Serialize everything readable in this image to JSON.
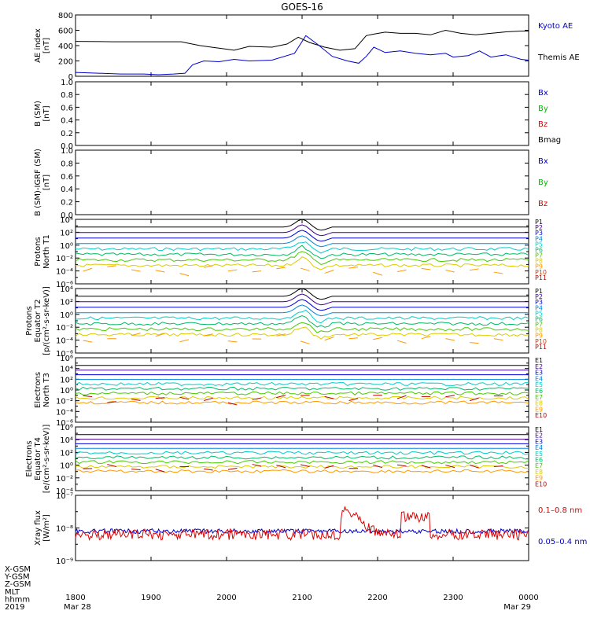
{
  "chart_data": {
    "type": "line",
    "title": "GOES-16",
    "time_axis": {
      "ticks": [
        "1800",
        "1900",
        "2000",
        "2100",
        "2200",
        "2300",
        "0000"
      ],
      "dates": [
        "Mar 28",
        "Mar 29"
      ],
      "range": [
        "2019-03-28 18:00",
        "2019-03-29 00:00"
      ],
      "row_labels": [
        "X-GSM",
        "Y-GSM",
        "Z-GSM",
        "MLT",
        "hhmm",
        "2019"
      ]
    },
    "panels": [
      {
        "id": "ae",
        "ylabel": [
          "AE index",
          "[nT]"
        ],
        "ylim": [
          0,
          800
        ],
        "ticks": [
          "800",
          "600",
          "400",
          "200",
          "0"
        ],
        "legend": [
          {
            "name": "Kyoto AE",
            "color": "#0000cc"
          },
          {
            "name": "Themis AE",
            "color": "#000000"
          }
        ],
        "series": [
          {
            "name": "Themis AE",
            "color": "#000000",
            "x": [
              18.0,
              18.5,
              19.0,
              19.4,
              19.5,
              19.65,
              19.8,
              19.95,
              20.1,
              20.3,
              20.6,
              20.8,
              20.95,
              21.1,
              21.3,
              21.5,
              21.7,
              21.85,
              21.95,
              22.1,
              22.3,
              22.5,
              22.7,
              22.9,
              23.1,
              23.3,
              23.5,
              23.7,
              23.9,
              24.0
            ],
            "y": [
              455,
              450,
              450,
              450,
              430,
              400,
              380,
              360,
              340,
              390,
              380,
              420,
              510,
              440,
              380,
              340,
              360,
              530,
              550,
              575,
              560,
              560,
              540,
              600,
              560,
              540,
              560,
              580,
              590,
              590
            ]
          },
          {
            "name": "Kyoto AE",
            "color": "#0000cc",
            "x": [
              18.0,
              18.3,
              18.6,
              18.9,
              19.1,
              19.3,
              19.45,
              19.55,
              19.7,
              19.9,
              20.1,
              20.3,
              20.6,
              20.9,
              21.05,
              21.2,
              21.4,
              21.6,
              21.75,
              21.85,
              21.95,
              22.1,
              22.3,
              22.5,
              22.7,
              22.9,
              23.0,
              23.2,
              23.35,
              23.5,
              23.7,
              23.9,
              24.0
            ],
            "y": [
              50,
              40,
              30,
              30,
              20,
              30,
              40,
              150,
              200,
              190,
              220,
              200,
              210,
              300,
              530,
              420,
              260,
              200,
              170,
              260,
              380,
              310,
              330,
              300,
              280,
              300,
              250,
              270,
              330,
              250,
              280,
              220,
              210
            ]
          }
        ]
      },
      {
        "id": "bsm",
        "ylabel": [
          "B (SM)",
          "[nT]"
        ],
        "ylim": [
          0.0,
          1.0
        ],
        "ticks": [
          "1.0",
          "0.8",
          "0.6",
          "0.4",
          "0.2",
          "0.0"
        ],
        "legend": [
          {
            "name": "Bx",
            "color": "#0000cc"
          },
          {
            "name": "By",
            "color": "#00bb00"
          },
          {
            "name": "Bz",
            "color": "#dd0000"
          },
          {
            "name": "Bmag",
            "color": "#000000"
          }
        ]
      },
      {
        "id": "bigrf",
        "ylabel": [
          "B (SM)-IGRF (SM)",
          "[nT]"
        ],
        "ylim": [
          0.0,
          1.0
        ],
        "ticks": [
          "1.0",
          "0.8",
          "0.6",
          "0.4",
          "0.2",
          "0.0"
        ],
        "legend": [
          {
            "name": "Bx",
            "color": "#0000cc"
          },
          {
            "name": "By",
            "color": "#00bb00"
          },
          {
            "name": "Bz",
            "color": "#dd0000"
          }
        ]
      },
      {
        "id": "protons_t1",
        "ylabel": [
          "Protons",
          "North T1"
        ],
        "log": true,
        "ticks": [
          "10⁴",
          "10²",
          "10⁰",
          "10⁻²",
          "10⁻⁴",
          "10⁻⁶"
        ],
        "legend_labels": [
          "P1",
          "P2",
          "P3",
          "P4",
          "P5",
          "P6",
          "P7",
          "P8",
          "P9",
          "P10",
          "P11"
        ]
      },
      {
        "id": "protons_t2",
        "ylabel": [
          "Protons",
          "Equator T2",
          "[p/(cm²-s-sr-keV)]"
        ],
        "log": true,
        "ticks": [
          "10⁴",
          "10²",
          "10⁰",
          "10⁻²",
          "10⁻⁴",
          "10⁻⁶"
        ],
        "legend_labels": [
          "P1",
          "P2",
          "P3",
          "P4",
          "P5",
          "P6",
          "P7",
          "P8",
          "P9",
          "P10",
          "P11"
        ]
      },
      {
        "id": "electrons_t3",
        "ylabel": [
          "Electrons",
          "North T3"
        ],
        "log": true,
        "ticks": [
          "10⁶",
          "10⁴",
          "10²",
          "10⁰",
          "10⁻²",
          "10⁻⁴",
          "10⁻⁶"
        ],
        "legend_labels": [
          "E1",
          "E2",
          "E3",
          "E4",
          "E5",
          "E6",
          "E7",
          "E8",
          "E9",
          "E10"
        ]
      },
      {
        "id": "electrons_t4",
        "ylabel": [
          "Electrons",
          "Equator T4",
          "[e/(cm²-s-sr-keV)]"
        ],
        "log": true,
        "ticks": [
          "10⁶",
          "10⁴",
          "10²",
          "10⁰",
          "10⁻²",
          "10⁻⁴"
        ],
        "legend_labels": [
          "E1",
          "E2",
          "E3",
          "E4",
          "E5",
          "E6",
          "E7",
          "E8",
          "E9",
          "E10"
        ]
      },
      {
        "id": "xray",
        "ylabel": [
          "Xray flux",
          "[W/m²]"
        ],
        "log": true,
        "ticks": [
          "10⁻⁷",
          "10⁻⁸",
          "10⁻⁹"
        ],
        "legend": [
          {
            "name": "0.1–0.8 nm",
            "color": "#dd0000"
          },
          {
            "name": "0.05–0.4 nm",
            "color": "#0000cc"
          }
        ]
      }
    ]
  },
  "palette": {
    "P": [
      "#000000",
      "#40008a",
      "#0000dd",
      "#0088dd",
      "#00cccc",
      "#00bb66",
      "#44cc00",
      "#ddcc00",
      "#ff9900",
      "#dd3300",
      "#bb0000"
    ],
    "E": [
      "#000000",
      "#40008a",
      "#0000dd",
      "#0088dd",
      "#00cccc",
      "#00bb66",
      "#44cc00",
      "#ddcc00",
      "#ff9900",
      "#bb0000"
    ]
  }
}
